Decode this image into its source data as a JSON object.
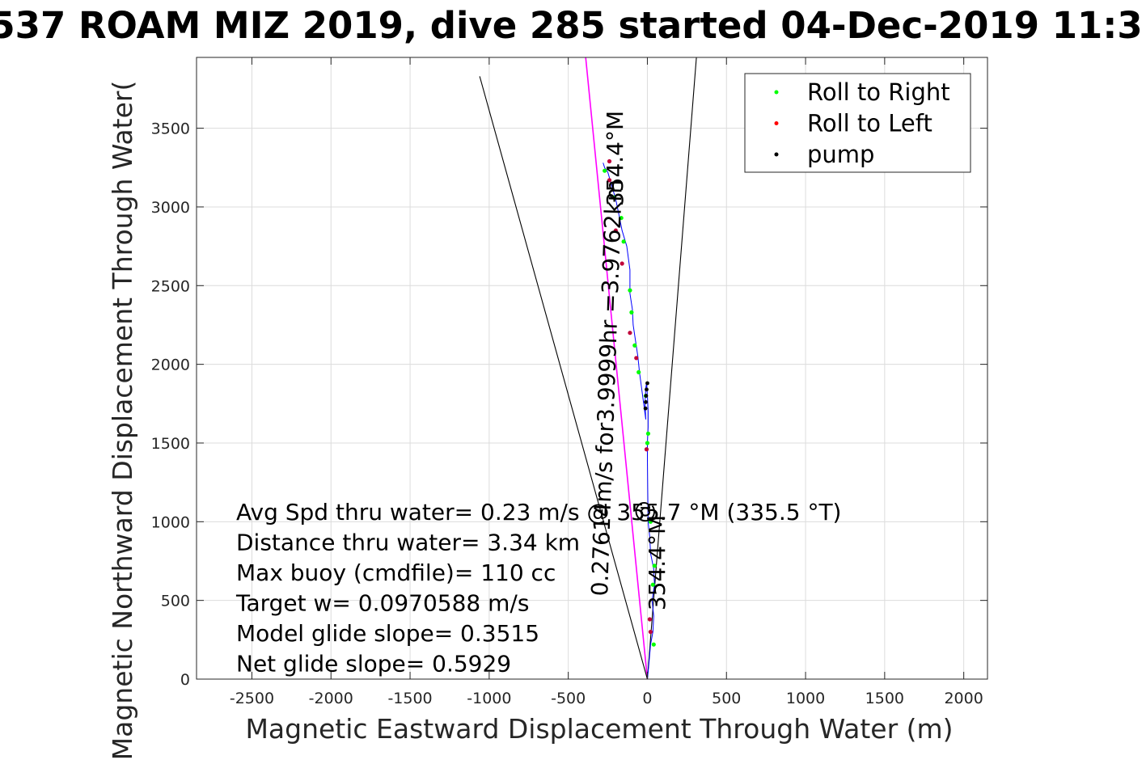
{
  "chart_data": {
    "type": "scatter",
    "title": "537 ROAM MIZ 2019, dive 285 started 04-Dec-2019 11:3",
    "xlabel": "Magnetic Eastward Displacement Through Water (m)",
    "ylabel": "Magnetic Northward Displacement Through Water(",
    "xlim": [
      -2850,
      2150
    ],
    "ylim": [
      0,
      3950
    ],
    "xticks": [
      -2500,
      -2000,
      -1500,
      -1000,
      -500,
      0,
      500,
      1000,
      1500,
      2000
    ],
    "yticks": [
      0,
      500,
      1000,
      1500,
      2000,
      2500,
      3000,
      3500
    ],
    "grid": true,
    "legend": {
      "placement": "top-right",
      "entries": [
        {
          "name": "Roll to Right",
          "color": "#00ff00"
        },
        {
          "name": "Roll to Left",
          "color": "#ff0000"
        },
        {
          "name": "pump",
          "color": "#000000"
        }
      ]
    },
    "track": {
      "color": "#0000ff",
      "x": [
        0,
        10,
        20,
        35,
        40,
        30,
        45,
        40,
        20,
        15,
        5,
        2,
        0,
        0,
        5,
        5,
        0,
        -5,
        -10,
        -15,
        -10,
        -50,
        -55,
        -60,
        -75,
        -90,
        -95,
        -110,
        -110,
        -130,
        -160,
        -180,
        -200,
        -230,
        -250,
        -270,
        -280
      ],
      "y": [
        0,
        100,
        220,
        300,
        400,
        500,
        600,
        700,
        800,
        900,
        1000,
        1200,
        1400,
        1500,
        1600,
        1700,
        1800,
        1880,
        1850,
        1750,
        1650,
        1950,
        2000,
        2050,
        2150,
        2250,
        2350,
        2450,
        2600,
        2750,
        2850,
        2950,
        3050,
        3150,
        3220,
        3250,
        3280
      ]
    },
    "series": [
      {
        "name": "Roll to Right",
        "color": "#00ff00",
        "x": [
          40,
          35,
          45,
          20,
          5,
          0,
          -10,
          -55,
          -80,
          -100,
          -110,
          -150,
          -165,
          -210,
          -270
        ],
        "y": [
          220,
          600,
          720,
          1000,
          1560,
          1500,
          1800,
          1950,
          2120,
          2330,
          2470,
          2780,
          2930,
          3060,
          3230
        ]
      },
      {
        "name": "Roll to Left",
        "color": "#ff0000",
        "x": 0,
        "y": 0,
        "points": [
          [
            20,
            300
          ],
          [
            15,
            380
          ],
          [
            -5,
            1460
          ],
          [
            -70,
            2040
          ],
          [
            -110,
            2200
          ],
          [
            -160,
            2640
          ],
          [
            -200,
            2850
          ],
          [
            -240,
            3170
          ],
          [
            -240,
            3290
          ]
        ]
      },
      {
        "name": "pump",
        "color": "#000000",
        "points": [
          [
            0,
            1880
          ],
          [
            -5,
            1840
          ],
          [
            -8,
            1800
          ],
          [
            -10,
            1760
          ],
          [
            -12,
            1720
          ]
        ]
      }
    ],
    "reference_lines": [
      {
        "label": "0.27614m/s for3.9999hr =3.9762km",
        "from": [
          0,
          0
        ],
        "to": [
          -390,
          3950
        ],
        "color": "#ff00ff"
      },
      {
        "from": [
          0,
          0
        ],
        "to": [
          -1060,
          3830
        ],
        "color": "#000000"
      },
      {
        "from": [
          0,
          0
        ],
        "to": [
          310,
          3950
        ],
        "color": "#000000"
      }
    ],
    "annotations": {
      "heading_top": "354.4°M",
      "heading_bottom": "354.4°M",
      "at_symbol": "@",
      "lines": [
        "Avg Spd thru water=  0.23 m/s @ 355.7 °M (335.5 °T)",
        "Distance thru water=  3.34 km",
        "Max buoy (cmdfile)= 110 cc",
        "Target w= 0.0970588 m/s",
        "Model glide slope= 0.3515",
        "Net glide slope= 0.5929"
      ]
    }
  }
}
